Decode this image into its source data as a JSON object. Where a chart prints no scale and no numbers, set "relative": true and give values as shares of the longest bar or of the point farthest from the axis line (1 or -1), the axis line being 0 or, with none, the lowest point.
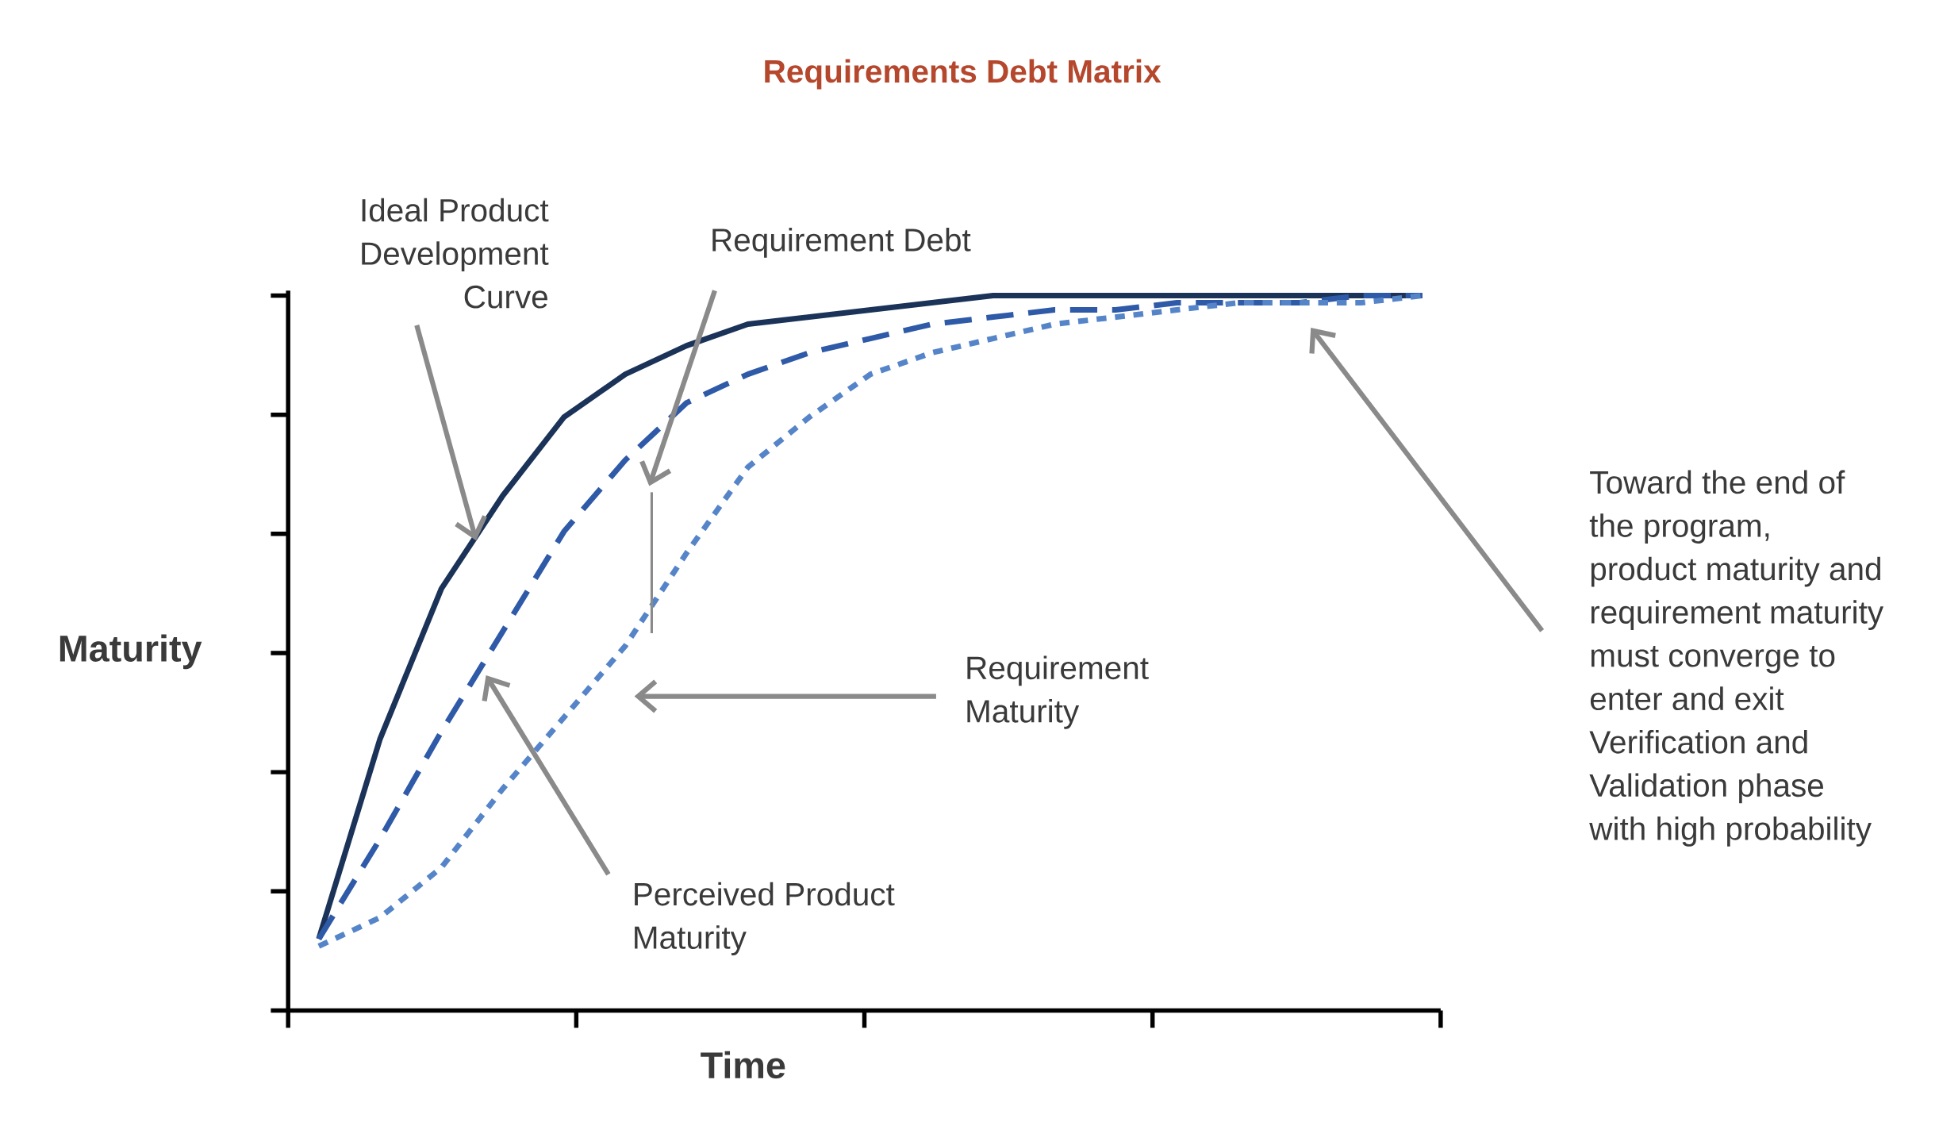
{
  "chart_data": {
    "type": "line",
    "title": "Requirements Debt Matrix",
    "xlabel": "Time",
    "ylabel": "Maturity",
    "relative": true,
    "categories": [
      null,
      null,
      null,
      null,
      null,
      null,
      null,
      null,
      null,
      null,
      null,
      null,
      null,
      null,
      null,
      null,
      null,
      null,
      null
    ],
    "series": [
      {
        "color": "#1b3358",
        "line_style": "solid",
        "values": [
          0.1,
          0.38,
          0.59,
          0.72,
          0.83,
          0.89,
          0.93,
          0.96,
          0.97,
          0.98,
          0.99,
          1.0,
          1.0,
          1.0,
          1.0,
          1.0,
          1.0,
          1.0,
          1.0
        ]
      },
      {
        "color": "#2f5aa8",
        "line_style": "dashed",
        "values": [
          0.1,
          0.24,
          0.39,
          0.53,
          0.67,
          0.77,
          0.85,
          0.89,
          0.92,
          0.94,
          0.96,
          0.97,
          0.98,
          0.98,
          0.99,
          0.99,
          0.99,
          1.0,
          1.0
        ]
      },
      {
        "color": "#5585c8",
        "line_style": "dotted",
        "values": [
          0.09,
          0.13,
          0.2,
          0.31,
          0.41,
          0.51,
          0.64,
          0.76,
          0.83,
          0.89,
          0.92,
          0.94,
          0.96,
          0.97,
          0.98,
          0.99,
          0.99,
          0.99,
          1.0
        ]
      }
    ],
    "annotations": [
      "Ideal Product Development Curve",
      "Requirement Debt",
      "Requirement Maturity",
      "Perceived Product Maturity",
      "Toward the end of the program, product maturity and requirement maturity must converge to enter and exit Verification and Validation phase with high probability"
    ]
  }
}
